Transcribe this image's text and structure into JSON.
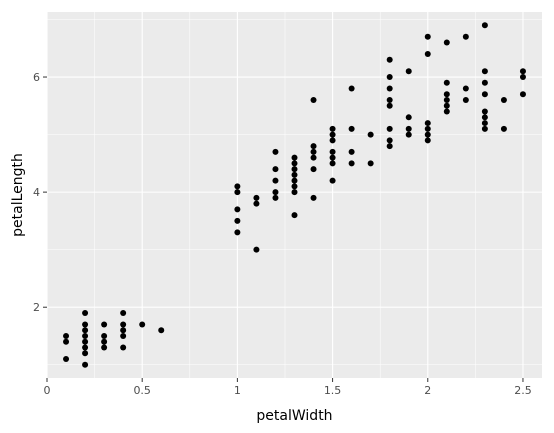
{
  "chart_data": {
    "type": "scatter",
    "xlabel": "petalWidth",
    "ylabel": "petalLength",
    "xlim": [
      0,
      2.6
    ],
    "ylim": [
      0.77,
      7.13
    ],
    "x_ticks": [
      0,
      0.5,
      1,
      1.5,
      2,
      2.5
    ],
    "x_tick_labels": [
      "0",
      "0.5",
      "1",
      "1.5",
      "2",
      "2.5"
    ],
    "y_ticks": [
      2,
      4,
      6
    ],
    "y_tick_labels": [
      "2",
      "4",
      "6"
    ],
    "grid": true,
    "colors": {
      "panel": "#ebebeb",
      "grid": "#ffffff",
      "point": "#000000",
      "tick_text": "#4d4d4d"
    },
    "points": [
      [
        0.1,
        1.1
      ],
      [
        0.1,
        1.4
      ],
      [
        0.1,
        1.5
      ],
      [
        0.2,
        1.0
      ],
      [
        0.2,
        1.2
      ],
      [
        0.2,
        1.3
      ],
      [
        0.2,
        1.4
      ],
      [
        0.2,
        1.5
      ],
      [
        0.2,
        1.6
      ],
      [
        0.2,
        1.7
      ],
      [
        0.2,
        1.9
      ],
      [
        0.3,
        1.3
      ],
      [
        0.3,
        1.4
      ],
      [
        0.3,
        1.5
      ],
      [
        0.3,
        1.7
      ],
      [
        0.4,
        1.3
      ],
      [
        0.4,
        1.5
      ],
      [
        0.4,
        1.6
      ],
      [
        0.4,
        1.7
      ],
      [
        0.4,
        1.9
      ],
      [
        0.5,
        1.7
      ],
      [
        0.6,
        1.6
      ],
      [
        1.0,
        3.3
      ],
      [
        1.0,
        3.5
      ],
      [
        1.0,
        3.7
      ],
      [
        1.0,
        4.0
      ],
      [
        1.0,
        4.1
      ],
      [
        1.1,
        3.0
      ],
      [
        1.1,
        3.8
      ],
      [
        1.1,
        3.9
      ],
      [
        1.2,
        3.9
      ],
      [
        1.2,
        4.0
      ],
      [
        1.2,
        4.2
      ],
      [
        1.2,
        4.4
      ],
      [
        1.2,
        4.7
      ],
      [
        1.3,
        3.6
      ],
      [
        1.3,
        4.0
      ],
      [
        1.3,
        4.1
      ],
      [
        1.3,
        4.2
      ],
      [
        1.3,
        4.3
      ],
      [
        1.3,
        4.4
      ],
      [
        1.3,
        4.5
      ],
      [
        1.3,
        4.6
      ],
      [
        1.4,
        3.9
      ],
      [
        1.4,
        4.4
      ],
      [
        1.4,
        4.6
      ],
      [
        1.4,
        4.7
      ],
      [
        1.4,
        4.8
      ],
      [
        1.4,
        5.6
      ],
      [
        1.5,
        4.2
      ],
      [
        1.5,
        4.5
      ],
      [
        1.5,
        4.6
      ],
      [
        1.5,
        4.7
      ],
      [
        1.5,
        4.9
      ],
      [
        1.5,
        5.0
      ],
      [
        1.5,
        5.1
      ],
      [
        1.6,
        4.5
      ],
      [
        1.6,
        4.7
      ],
      [
        1.6,
        5.1
      ],
      [
        1.6,
        5.8
      ],
      [
        1.7,
        4.5
      ],
      [
        1.7,
        5.0
      ],
      [
        1.8,
        4.8
      ],
      [
        1.8,
        4.9
      ],
      [
        1.8,
        5.1
      ],
      [
        1.8,
        5.5
      ],
      [
        1.8,
        5.6
      ],
      [
        1.8,
        5.8
      ],
      [
        1.8,
        6.0
      ],
      [
        1.8,
        6.3
      ],
      [
        1.9,
        5.0
      ],
      [
        1.9,
        5.1
      ],
      [
        1.9,
        5.3
      ],
      [
        1.9,
        6.1
      ],
      [
        2.0,
        4.9
      ],
      [
        2.0,
        5.0
      ],
      [
        2.0,
        5.1
      ],
      [
        2.0,
        5.2
      ],
      [
        2.0,
        6.4
      ],
      [
        2.0,
        6.7
      ],
      [
        2.1,
        5.4
      ],
      [
        2.1,
        5.5
      ],
      [
        2.1,
        5.6
      ],
      [
        2.1,
        5.7
      ],
      [
        2.1,
        5.9
      ],
      [
        2.1,
        6.6
      ],
      [
        2.2,
        5.6
      ],
      [
        2.2,
        5.8
      ],
      [
        2.2,
        6.7
      ],
      [
        2.3,
        5.1
      ],
      [
        2.3,
        5.2
      ],
      [
        2.3,
        5.3
      ],
      [
        2.3,
        5.4
      ],
      [
        2.3,
        5.7
      ],
      [
        2.3,
        5.9
      ],
      [
        2.3,
        6.1
      ],
      [
        2.3,
        6.9
      ],
      [
        2.4,
        5.1
      ],
      [
        2.4,
        5.6
      ],
      [
        2.5,
        5.7
      ],
      [
        2.5,
        6.0
      ],
      [
        2.5,
        6.1
      ]
    ]
  }
}
